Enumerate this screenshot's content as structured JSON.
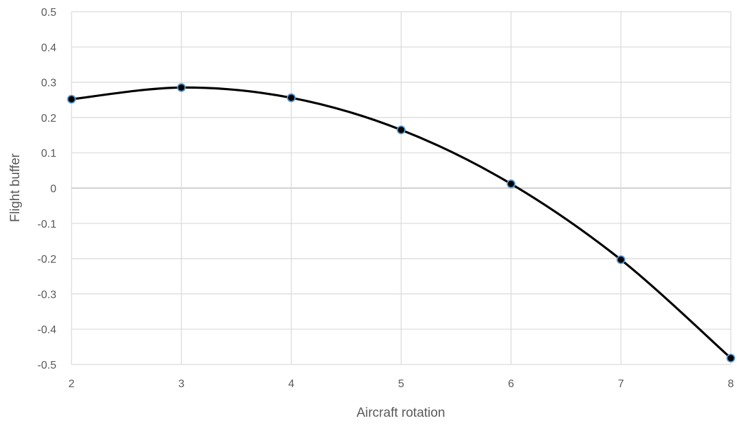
{
  "chart_data": {
    "type": "scatter",
    "title": "",
    "xlabel": "Aircraft rotation",
    "ylabel": "Flight buffer",
    "xlim": [
      2,
      8
    ],
    "ylim": [
      -0.5,
      0.5
    ],
    "x_ticks": [
      "2",
      "3",
      "4",
      "5",
      "6",
      "7",
      "8"
    ],
    "y_ticks": [
      "0.5",
      "0.4",
      "0.3",
      "0.2",
      "0.1",
      "0",
      "-0.1",
      "-0.2",
      "-0.3",
      "-0.4",
      "-0.5"
    ],
    "grid": true,
    "smooth_line": true,
    "legend": "none",
    "series": [
      {
        "x": [
          2,
          3,
          4,
          5,
          6,
          7,
          8
        ],
        "y": [
          0.252,
          0.285,
          0.256,
          0.165,
          0.012,
          -0.203,
          -0.482
        ],
        "line_color": "#000000",
        "marker_fill": "#000000",
        "marker_edge": "#5b9bd5"
      }
    ]
  }
}
